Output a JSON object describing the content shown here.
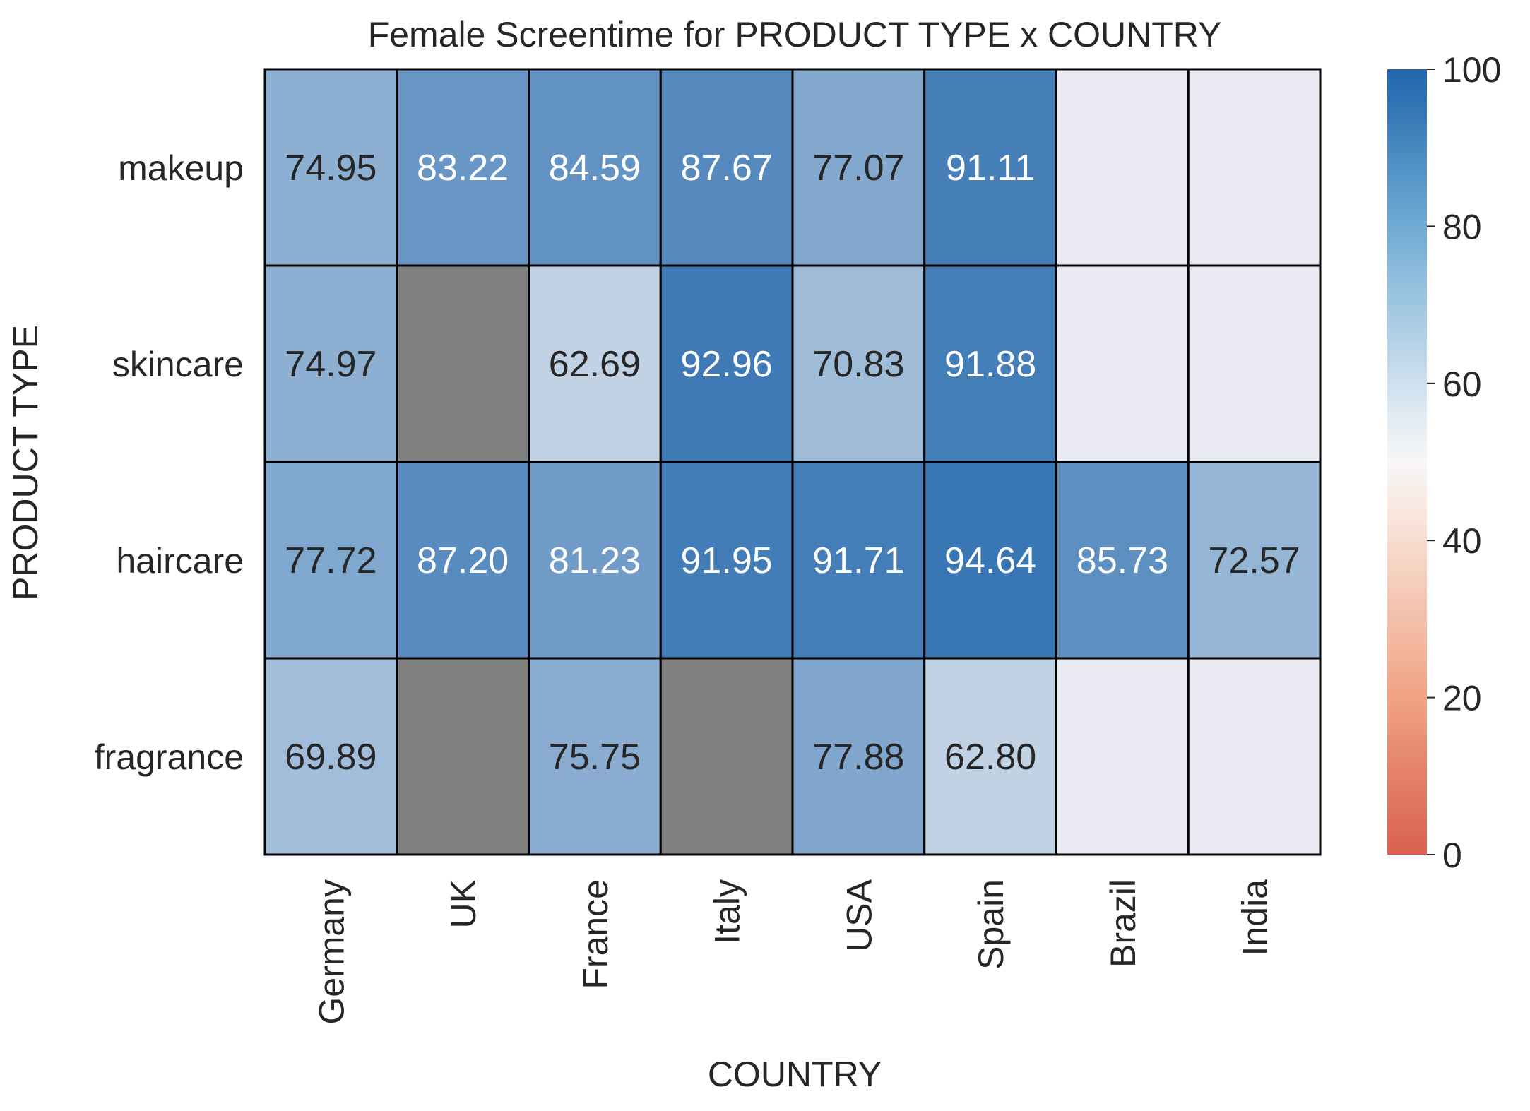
{
  "chart_data": {
    "type": "heatmap",
    "title": "Female Screentime for PRODUCT TYPE x COUNTRY",
    "xlabel": "COUNTRY",
    "ylabel": "PRODUCT TYPE",
    "x_categories": [
      "Germany",
      "UK",
      "France",
      "Italy",
      "USA",
      "Spain",
      "Brazil",
      "India"
    ],
    "y_categories": [
      "makeup",
      "skincare",
      "haircare",
      "fragrance"
    ],
    "values": [
      [
        74.95,
        83.22,
        84.59,
        87.67,
        77.07,
        91.11,
        null,
        null
      ],
      [
        74.97,
        "missing",
        62.69,
        92.96,
        70.83,
        91.88,
        null,
        null
      ],
      [
        77.72,
        87.2,
        81.23,
        91.95,
        91.71,
        94.64,
        85.73,
        72.57
      ],
      [
        69.89,
        "missing",
        75.75,
        "missing",
        77.88,
        62.8,
        null,
        null
      ]
    ],
    "value_format": "2 decimals",
    "colorbar": {
      "range": [
        0,
        100
      ],
      "ticks": [
        0,
        20,
        40,
        60,
        80,
        100
      ],
      "colors": [
        "#d9604d",
        "#f7f7f7",
        "#2166ac"
      ]
    },
    "missing_color": "#808080",
    "empty_color": "#eaeaf2",
    "cell_border_color": "#000000",
    "grid": false
  }
}
